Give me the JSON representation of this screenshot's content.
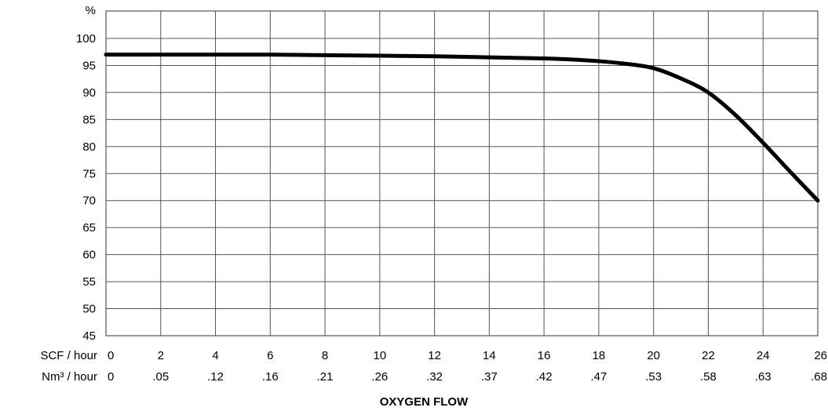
{
  "chart_data": {
    "type": "line",
    "title": "",
    "ylabel": "%",
    "xlabel": "OXYGEN FLOW",
    "xlim": [
      0,
      26
    ],
    "ylim": [
      45,
      100
    ],
    "grid": true,
    "y_ticks": [
      "100",
      "95",
      "90",
      "85",
      "80",
      "75",
      "70",
      "65",
      "60",
      "55",
      "50",
      "45"
    ],
    "x_axis_rows": [
      {
        "unit_label": "SCF / hour",
        "ticks": [
          "0",
          "2",
          "4",
          "6",
          "8",
          "10",
          "12",
          "14",
          "16",
          "18",
          "20",
          "22",
          "24",
          "26"
        ]
      },
      {
        "unit_label": "Nm³ / hour",
        "ticks": [
          "0",
          ".05",
          ".12",
          ".16",
          ".21",
          ".26",
          ".32",
          ".37",
          ".42",
          ".47",
          ".53",
          ".58",
          ".63",
          ".68"
        ]
      }
    ],
    "series": [
      {
        "x": [
          0,
          2,
          4,
          6,
          8,
          10,
          12,
          14,
          16,
          17,
          18,
          19,
          20,
          21,
          22,
          23,
          24,
          25,
          26
        ],
        "y": [
          97,
          97,
          97,
          97,
          96.9,
          96.8,
          96.7,
          96.5,
          96.3,
          96.1,
          95.8,
          95.3,
          94.5,
          92.6,
          90,
          85.8,
          80.7,
          75.3,
          70
        ]
      }
    ],
    "line_color": "#000000",
    "grid_color": "#555555"
  }
}
